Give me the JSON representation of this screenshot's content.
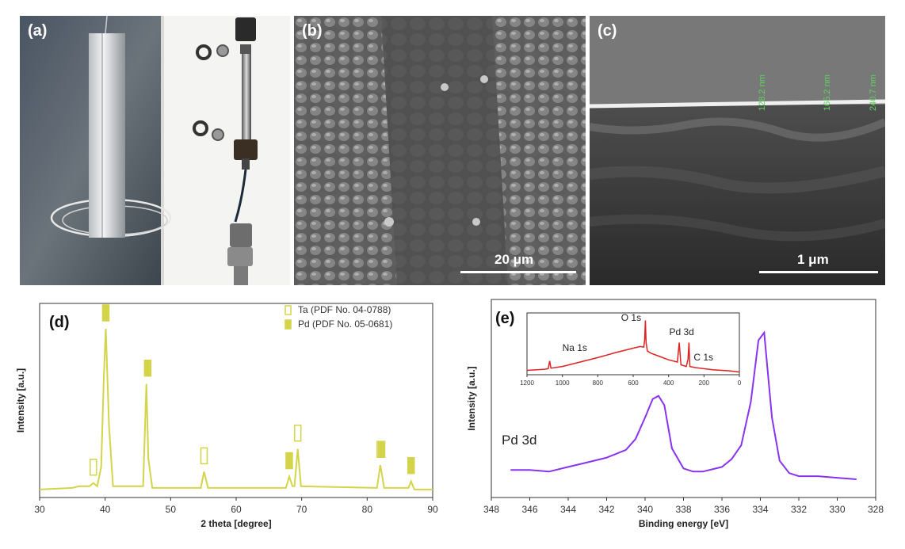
{
  "panels": {
    "a": {
      "label": "(a)"
    },
    "b": {
      "label": "(b)",
      "scale_bar": "20 μm"
    },
    "c": {
      "label": "(c)",
      "scale_bar": "1 μm",
      "thickness_labels": [
        "128.2 nm",
        "165.2 nm",
        "240.7 nm"
      ]
    },
    "d": {
      "label": "(d)"
    },
    "e": {
      "label": "(e)",
      "peak_label": "Pd 3d"
    }
  },
  "chart_data": [
    {
      "type": "line",
      "panel": "d",
      "xlabel": "2 theta [degree]",
      "ylabel": "Intensity [a.u.]",
      "xlim": [
        30,
        90
      ],
      "xticks": [
        30,
        40,
        50,
        60,
        70,
        80,
        90
      ],
      "legend_position": "top-right",
      "legend": [
        {
          "name": "Ta (PDF No. 04-0788)",
          "marker": "open"
        },
        {
          "name": "Pd (PDF No. 05-0681)",
          "marker": "filled"
        }
      ],
      "color": "#d4d44a",
      "series": [
        {
          "x": [
            30,
            35,
            36,
            37.6,
            38.2,
            38.8,
            39.4,
            39.8,
            40.1,
            40.6,
            41.2,
            45.8,
            46.3,
            46.6,
            47.2,
            54.6,
            55.1,
            55.7,
            67.6,
            68.1,
            68.6,
            68.9,
            69.4,
            69.9,
            81.5,
            82.0,
            82.6,
            86.3,
            86.7,
            87.2,
            90
          ],
          "y": [
            0.01,
            0.02,
            0.03,
            0.03,
            0.05,
            0.03,
            0.15,
            0.7,
            1.0,
            0.4,
            0.03,
            0.03,
            0.66,
            0.2,
            0.02,
            0.02,
            0.12,
            0.02,
            0.02,
            0.09,
            0.03,
            0.03,
            0.26,
            0.03,
            0.02,
            0.16,
            0.02,
            0.02,
            0.06,
            0.01,
            0.01
          ]
        }
      ],
      "markers": [
        {
          "phase": "Ta",
          "x": 38.2,
          "y": 0.05
        },
        {
          "phase": "Pd",
          "x": 40.1,
          "y": 1.0
        },
        {
          "phase": "Pd",
          "x": 46.5,
          "y": 0.66
        },
        {
          "phase": "Ta",
          "x": 55.1,
          "y": 0.12
        },
        {
          "phase": "Pd",
          "x": 68.1,
          "y": 0.09
        },
        {
          "phase": "Ta",
          "x": 69.4,
          "y": 0.26
        },
        {
          "phase": "Ta",
          "x": 82.0,
          "y": 0.16
        },
        {
          "phase": "Pd",
          "x": 82.2,
          "y": 0.16
        },
        {
          "phase": "Pd",
          "x": 86.7,
          "y": 0.06
        }
      ]
    },
    {
      "type": "line",
      "panel": "e",
      "xlabel": "Binding energy [eV]",
      "ylabel": "Intensity [a.u.]",
      "xlim": [
        348,
        328
      ],
      "xticks": [
        348,
        346,
        344,
        342,
        340,
        338,
        336,
        334,
        332,
        330,
        328
      ],
      "color": "#8833ee",
      "series": [
        {
          "x": [
            347,
            346,
            345,
            344,
            343,
            342,
            341,
            340.5,
            340,
            339.6,
            339.3,
            339,
            338.6,
            338,
            337.5,
            337,
            336,
            335.5,
            335,
            334.5,
            334.1,
            333.8,
            333.4,
            333,
            332.5,
            332,
            331,
            330,
            329
          ],
          "y": [
            0.06,
            0.06,
            0.05,
            0.08,
            0.11,
            0.14,
            0.19,
            0.26,
            0.4,
            0.52,
            0.54,
            0.48,
            0.2,
            0.07,
            0.05,
            0.05,
            0.08,
            0.13,
            0.22,
            0.5,
            0.9,
            0.95,
            0.4,
            0.12,
            0.04,
            0.02,
            0.02,
            0.01,
            0.0
          ]
        }
      ]
    },
    {
      "type": "line",
      "panel": "e-inset",
      "xlim": [
        1200,
        0
      ],
      "xticks": [
        1200,
        1000,
        800,
        600,
        400,
        200,
        0
      ],
      "color": "#dd2222",
      "annotations": [
        {
          "text": "Na 1s",
          "x": 1072
        },
        {
          "text": "O 1s",
          "x": 531
        },
        {
          "text": "Pd 3d",
          "x": 335
        },
        {
          "text": "C 1s",
          "x": 285
        }
      ],
      "series": [
        {
          "x": [
            1200,
            1100,
            1080,
            1072,
            1065,
            1000,
            900,
            800,
            700,
            600,
            560,
            540,
            535,
            531,
            527,
            520,
            500,
            450,
            400,
            350,
            340,
            335,
            330,
            300,
            290,
            285,
            280,
            250,
            200,
            150,
            100,
            50,
            0
          ],
          "y": [
            0.05,
            0.07,
            0.08,
            0.22,
            0.09,
            0.12,
            0.2,
            0.28,
            0.37,
            0.45,
            0.48,
            0.47,
            0.6,
            0.95,
            0.55,
            0.4,
            0.36,
            0.3,
            0.24,
            0.2,
            0.55,
            0.35,
            0.15,
            0.12,
            0.25,
            0.55,
            0.12,
            0.1,
            0.08,
            0.06,
            0.05,
            0.04,
            0.02
          ]
        }
      ]
    }
  ]
}
